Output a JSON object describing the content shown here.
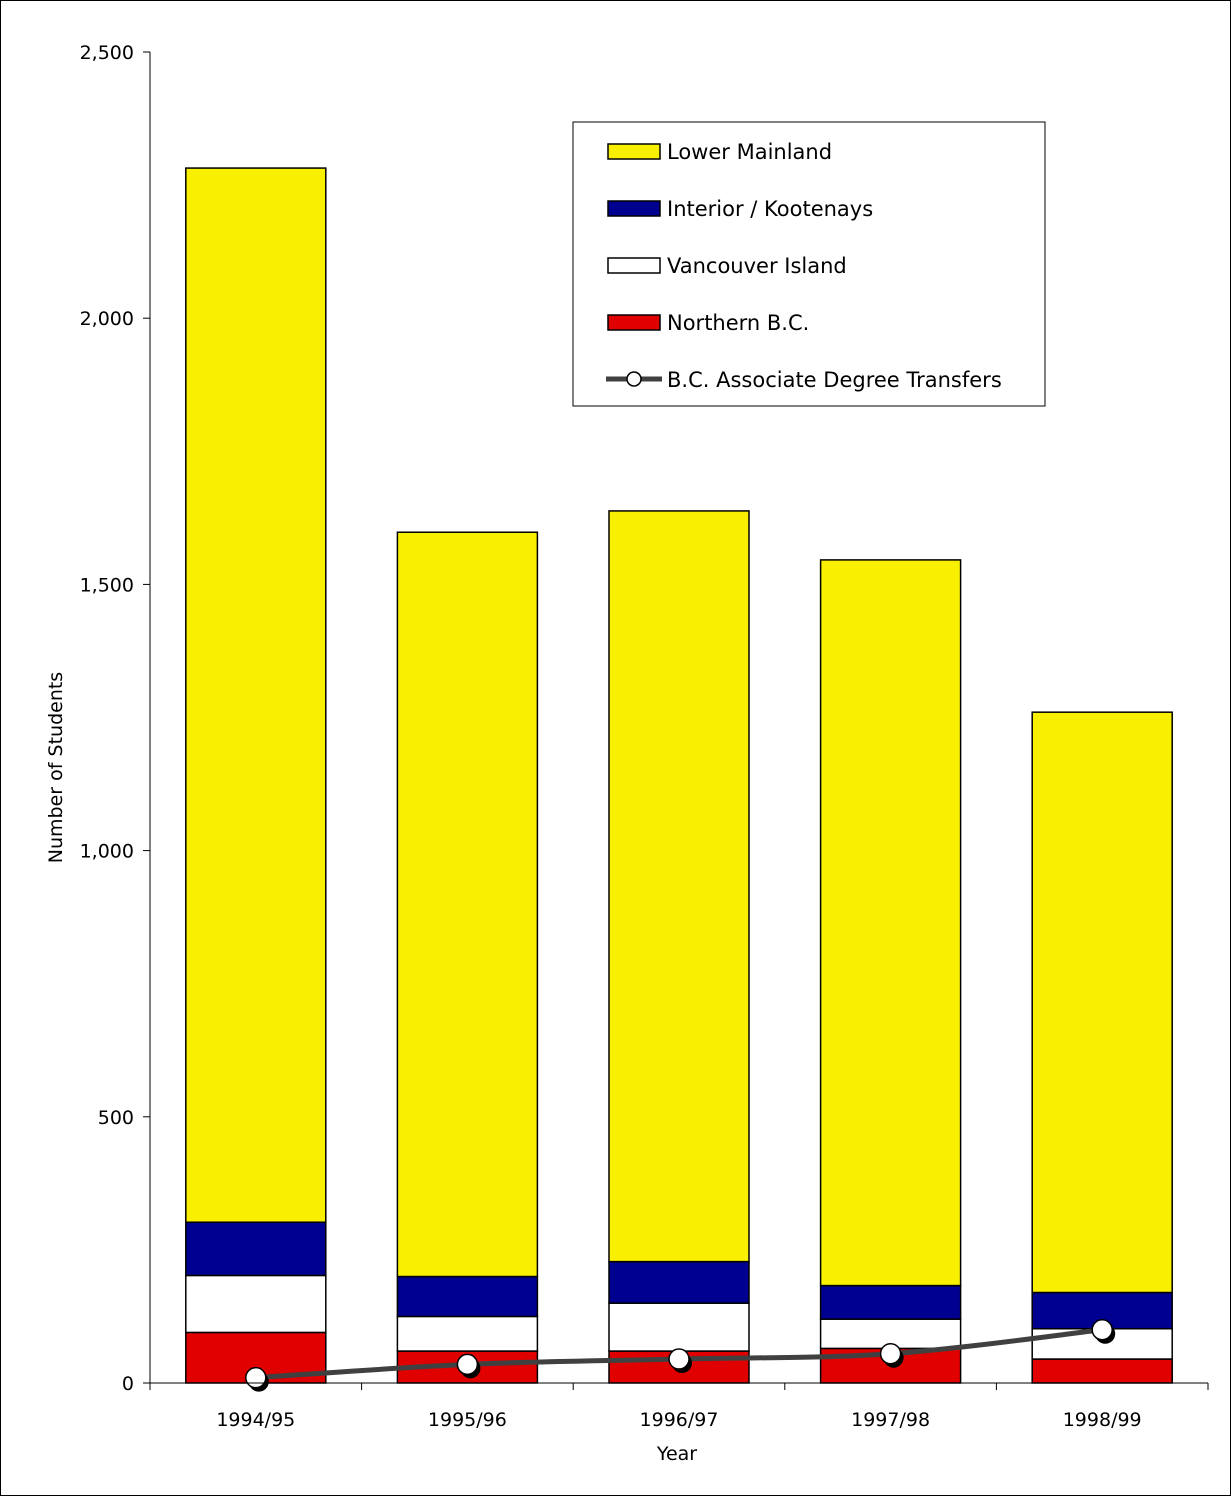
{
  "chart_data": {
    "type": "bar",
    "stacked": true,
    "title": "",
    "xlabel": "Year",
    "ylabel": "Number of Students",
    "categories": [
      "1994/95",
      "1995/96",
      "1996/97",
      "1997/98",
      "1998/99"
    ],
    "ylim": [
      0,
      2500
    ],
    "yticks": [
      0,
      500,
      1000,
      1500,
      2000,
      2500
    ],
    "ytick_labels": [
      "0",
      "500",
      "1,000",
      "1,500",
      "2,000",
      "2,500"
    ],
    "grid": false,
    "legend_position": "top-right",
    "series": [
      {
        "name": "Northern B.C.",
        "kind": "bar",
        "color": "#e00000",
        "values": [
          95,
          60,
          60,
          65,
          45
        ]
      },
      {
        "name": "Vancouver Island",
        "kind": "bar",
        "color": "#ffffff",
        "values": [
          107,
          65,
          90,
          55,
          57
        ]
      },
      {
        "name": "Interior / Kootenays",
        "kind": "bar",
        "color": "#000090",
        "values": [
          100,
          75,
          78,
          63,
          68
        ]
      },
      {
        "name": "Lower Mainland",
        "kind": "bar",
        "color": "#f8f000",
        "values": [
          1980,
          1398,
          1410,
          1363,
          1090
        ]
      },
      {
        "name": "B.C. Associate Degree Transfers",
        "kind": "line",
        "color": "#404040",
        "marker": "circle-white",
        "values": [
          10,
          35,
          45,
          55,
          100
        ]
      }
    ],
    "legend_order": [
      "Lower Mainland",
      "Interior / Kootenays",
      "Vancouver Island",
      "Northern B.C.",
      "B.C. Associate Degree Transfers"
    ]
  }
}
